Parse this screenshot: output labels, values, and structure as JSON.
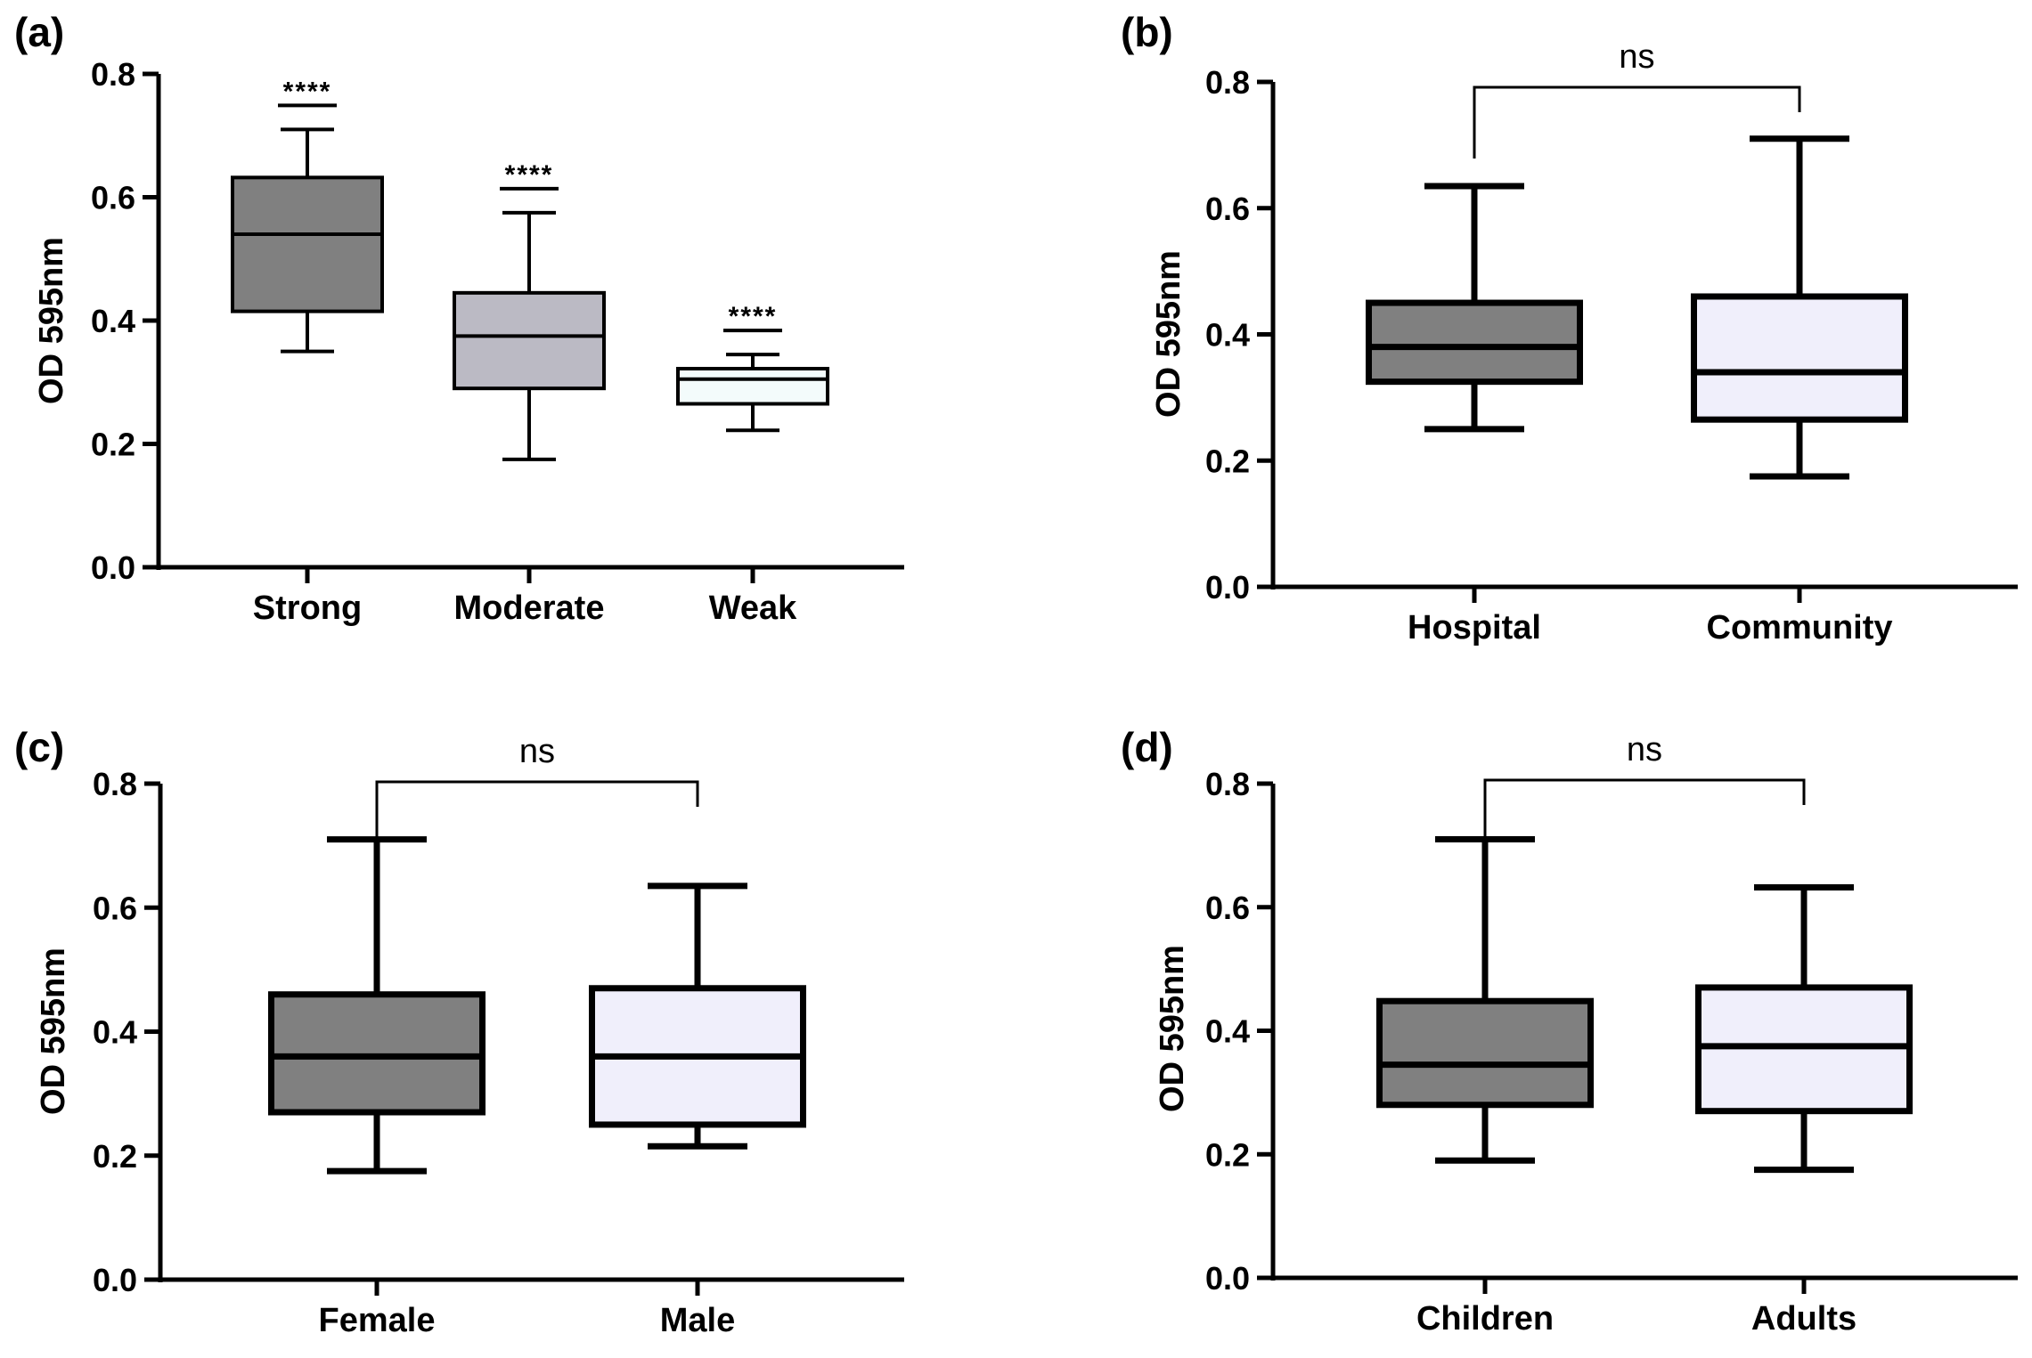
{
  "chart_data": [
    {
      "panel_label": "(a)",
      "type": "box",
      "ylabel": "OD 595nm",
      "ylim": [
        0,
        0.8
      ],
      "yticks": [
        "0.0",
        "0.2",
        "0.4",
        "0.6",
        "0.8"
      ],
      "categories": [
        "Strong",
        "Moderate",
        "Weak"
      ],
      "boxes": [
        {
          "name": "Strong",
          "min": 0.35,
          "q1": 0.415,
          "median": 0.54,
          "q3": 0.632,
          "max": 0.71,
          "fill": "#808080",
          "annotation": "****"
        },
        {
          "name": "Moderate",
          "min": 0.175,
          "q1": 0.29,
          "median": 0.375,
          "q3": 0.445,
          "max": 0.575,
          "fill": "#bbbac4",
          "annotation": "****"
        },
        {
          "name": "Weak",
          "min": 0.222,
          "q1": 0.265,
          "median": 0.305,
          "q3": 0.322,
          "max": 0.345,
          "fill": "#f3fbfb",
          "annotation": "****"
        }
      ],
      "style": "thin"
    },
    {
      "panel_label": "(b)",
      "type": "box",
      "ylabel": "OD 595nm",
      "ylim": [
        0,
        0.8
      ],
      "yticks": [
        "0.0",
        "0.2",
        "0.4",
        "0.6",
        "0.8"
      ],
      "categories": [
        "Hospital",
        "Community"
      ],
      "boxes": [
        {
          "name": "Hospital",
          "min": 0.25,
          "q1": 0.325,
          "median": 0.38,
          "q3": 0.45,
          "max": 0.635,
          "fill": "#808080"
        },
        {
          "name": "Community",
          "min": 0.175,
          "q1": 0.265,
          "median": 0.34,
          "q3": 0.46,
          "max": 0.71,
          "fill": "#f0effb"
        }
      ],
      "comparison": {
        "text": "ns",
        "from": "Hospital",
        "to": "Community"
      },
      "style": "thick"
    },
    {
      "panel_label": "(c)",
      "type": "box",
      "ylabel": "OD 595nm",
      "ylim": [
        0,
        0.8
      ],
      "yticks": [
        "0.0",
        "0.2",
        "0.4",
        "0.6",
        "0.8"
      ],
      "categories": [
        "Female",
        "Male"
      ],
      "boxes": [
        {
          "name": "Female",
          "min": 0.175,
          "q1": 0.27,
          "median": 0.36,
          "q3": 0.46,
          "max": 0.71,
          "fill": "#808080"
        },
        {
          "name": "Male",
          "min": 0.215,
          "q1": 0.25,
          "median": 0.36,
          "q3": 0.47,
          "max": 0.635,
          "fill": "#f0effb"
        }
      ],
      "comparison": {
        "text": "ns",
        "from": "Female",
        "to": "Male"
      },
      "style": "thick"
    },
    {
      "panel_label": "(d)",
      "type": "box",
      "ylabel": "OD 595nm",
      "ylim": [
        0,
        0.8
      ],
      "yticks": [
        "0.0",
        "0.2",
        "0.4",
        "0.6",
        "0.8"
      ],
      "categories": [
        "Children",
        "Adults"
      ],
      "boxes": [
        {
          "name": "Children",
          "min": 0.19,
          "q1": 0.28,
          "median": 0.345,
          "q3": 0.448,
          "max": 0.71,
          "fill": "#808080"
        },
        {
          "name": "Adults",
          "min": 0.175,
          "q1": 0.27,
          "median": 0.375,
          "q3": 0.47,
          "max": 0.632,
          "fill": "#f0effb"
        }
      ],
      "comparison": {
        "text": "ns",
        "from": "Children",
        "to": "Adults"
      },
      "style": "thick"
    }
  ]
}
